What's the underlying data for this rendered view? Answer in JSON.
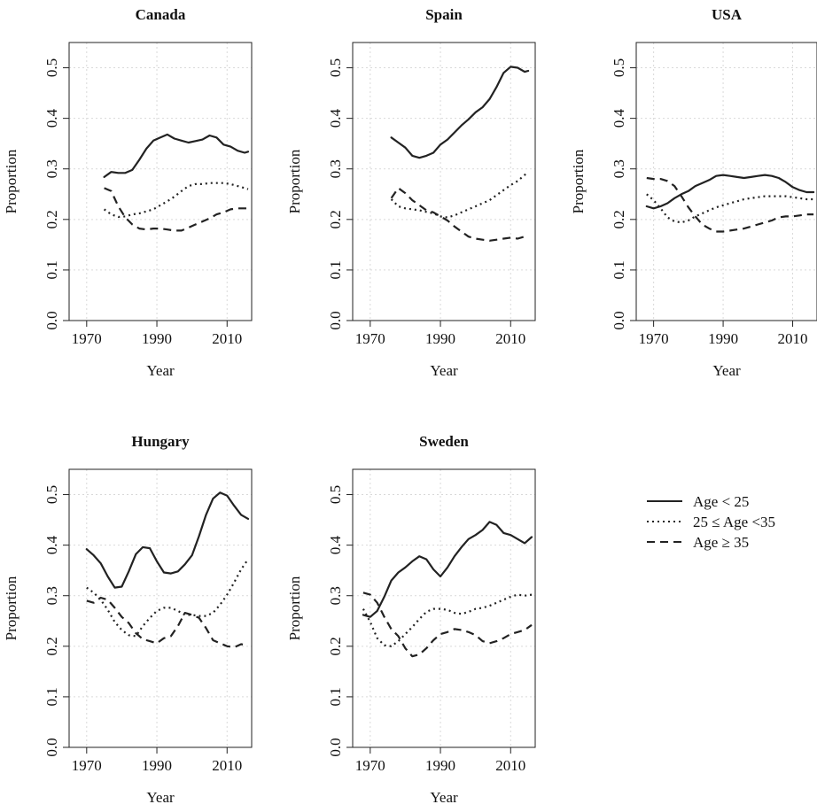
{
  "legend": {
    "entries": [
      {
        "label": "Age < 25",
        "dash": "solid"
      },
      {
        "label": "25 ≤ Age <35",
        "dash": "dotted"
      },
      {
        "label": "Age ≥ 35",
        "dash": "dashed"
      }
    ],
    "placement": "right of Sweden panel"
  },
  "chart_data": [
    {
      "type": "line",
      "title": "Canada",
      "xlabel": "Year",
      "ylabel": "Proportion",
      "xlim": [
        1965,
        2017
      ],
      "ylim": [
        0,
        0.55
      ],
      "xticks": [
        1970,
        1990,
        2010
      ],
      "yticks": [
        0.0,
        0.1,
        0.2,
        0.3,
        0.4,
        0.5
      ],
      "ytick_labels": [
        "0.0",
        "0.1",
        "0.2",
        "0.3",
        "0.4",
        "0.5"
      ],
      "grid": true,
      "series": [
        {
          "name": "Age < 25",
          "dash": "solid",
          "x": [
            1975,
            1977,
            1979,
            1981,
            1983,
            1985,
            1987,
            1989,
            1991,
            1993,
            1995,
            1997,
            1999,
            2001,
            2003,
            2005,
            2007,
            2009,
            2011,
            2013,
            2015,
            2016
          ],
          "y": [
            0.284,
            0.294,
            0.292,
            0.292,
            0.298,
            0.318,
            0.34,
            0.356,
            0.362,
            0.368,
            0.36,
            0.356,
            0.352,
            0.355,
            0.358,
            0.366,
            0.362,
            0.348,
            0.344,
            0.336,
            0.332,
            0.334
          ]
        },
        {
          "name": "25 ≤ Age <35",
          "dash": "dotted",
          "x": [
            1975,
            1977,
            1979,
            1981,
            1983,
            1985,
            1987,
            1989,
            1991,
            1993,
            1995,
            1997,
            1999,
            2001,
            2003,
            2005,
            2007,
            2009,
            2011,
            2013,
            2015,
            2016
          ],
          "y": [
            0.22,
            0.21,
            0.205,
            0.206,
            0.21,
            0.212,
            0.216,
            0.22,
            0.228,
            0.236,
            0.245,
            0.256,
            0.266,
            0.27,
            0.27,
            0.272,
            0.272,
            0.272,
            0.27,
            0.266,
            0.262,
            0.26
          ]
        },
        {
          "name": "Age ≥ 35",
          "dash": "dashed",
          "x": [
            1975,
            1977,
            1979,
            1981,
            1983,
            1985,
            1987,
            1989,
            1991,
            1993,
            1995,
            1997,
            1999,
            2001,
            2003,
            2005,
            2007,
            2009,
            2011,
            2013,
            2015,
            2016
          ],
          "y": [
            0.262,
            0.256,
            0.226,
            0.204,
            0.19,
            0.182,
            0.18,
            0.182,
            0.182,
            0.18,
            0.178,
            0.178,
            0.184,
            0.19,
            0.196,
            0.202,
            0.21,
            0.214,
            0.22,
            0.222,
            0.222,
            0.222
          ]
        }
      ]
    },
    {
      "type": "line",
      "title": "Spain",
      "xlabel": "Year",
      "ylabel": "Proportion",
      "xlim": [
        1965,
        2017
      ],
      "ylim": [
        0,
        0.55
      ],
      "xticks": [
        1970,
        1990,
        2010
      ],
      "yticks": [
        0.0,
        0.1,
        0.2,
        0.3,
        0.4,
        0.5
      ],
      "ytick_labels": [
        "0.0",
        "0.1",
        "0.2",
        "0.3",
        "0.4",
        "0.5"
      ],
      "grid": true,
      "series": [
        {
          "name": "Age < 25",
          "dash": "solid",
          "x": [
            1976,
            1978,
            1980,
            1982,
            1984,
            1986,
            1988,
            1990,
            1992,
            1994,
            1996,
            1998,
            2000,
            2002,
            2004,
            2006,
            2008,
            2010,
            2012,
            2014,
            2015
          ],
          "y": [
            0.362,
            0.352,
            0.342,
            0.326,
            0.322,
            0.326,
            0.332,
            0.348,
            0.358,
            0.372,
            0.386,
            0.398,
            0.412,
            0.422,
            0.438,
            0.462,
            0.49,
            0.502,
            0.5,
            0.492,
            0.494
          ]
        },
        {
          "name": "25 ≤ Age <35",
          "dash": "dotted",
          "x": [
            1976,
            1978,
            1980,
            1982,
            1984,
            1986,
            1988,
            1990,
            1992,
            1994,
            1996,
            1998,
            2000,
            2002,
            2004,
            2006,
            2008,
            2010,
            2012,
            2014,
            2015
          ],
          "y": [
            0.24,
            0.226,
            0.222,
            0.22,
            0.218,
            0.215,
            0.212,
            0.206,
            0.204,
            0.208,
            0.214,
            0.22,
            0.226,
            0.232,
            0.238,
            0.248,
            0.258,
            0.268,
            0.276,
            0.288,
            0.294
          ]
        },
        {
          "name": "Age ≥ 35",
          "dash": "dashed",
          "x": [
            1976,
            1978,
            1980,
            1982,
            1984,
            1986,
            1988,
            1990,
            1992,
            1994,
            1996,
            1998,
            2000,
            2002,
            2004,
            2006,
            2008,
            2010,
            2012,
            2014,
            2015
          ],
          "y": [
            0.242,
            0.262,
            0.252,
            0.238,
            0.228,
            0.218,
            0.214,
            0.206,
            0.198,
            0.186,
            0.176,
            0.166,
            0.162,
            0.16,
            0.158,
            0.16,
            0.162,
            0.164,
            0.162,
            0.166,
            0.168
          ]
        }
      ]
    },
    {
      "type": "line",
      "title": "USA",
      "xlabel": "Year",
      "ylabel": "Proportion",
      "xlim": [
        1965,
        2017
      ],
      "ylim": [
        0,
        0.55
      ],
      "xticks": [
        1970,
        1990,
        2010
      ],
      "yticks": [
        0.0,
        0.1,
        0.2,
        0.3,
        0.4,
        0.5
      ],
      "ytick_labels": [
        "0.0",
        "0.1",
        "0.2",
        "0.3",
        "0.4",
        "0.5"
      ],
      "grid": true,
      "series": [
        {
          "name": "Age < 25",
          "dash": "solid",
          "x": [
            1968,
            1970,
            1972,
            1974,
            1976,
            1978,
            1980,
            1982,
            1984,
            1986,
            1988,
            1990,
            1992,
            1994,
            1996,
            1998,
            2000,
            2002,
            2004,
            2006,
            2008,
            2010,
            2012,
            2014,
            2016
          ],
          "y": [
            0.226,
            0.222,
            0.226,
            0.232,
            0.242,
            0.25,
            0.256,
            0.266,
            0.272,
            0.278,
            0.286,
            0.288,
            0.286,
            0.284,
            0.282,
            0.284,
            0.286,
            0.288,
            0.286,
            0.282,
            0.274,
            0.264,
            0.258,
            0.254,
            0.254
          ]
        },
        {
          "name": "25 ≤ Age <35",
          "dash": "dotted",
          "x": [
            1968,
            1970,
            1972,
            1974,
            1976,
            1978,
            1980,
            1982,
            1984,
            1986,
            1988,
            1990,
            1992,
            1994,
            1996,
            1998,
            2000,
            2002,
            2004,
            2006,
            2008,
            2010,
            2012,
            2014,
            2016
          ],
          "y": [
            0.25,
            0.238,
            0.222,
            0.204,
            0.196,
            0.194,
            0.198,
            0.206,
            0.212,
            0.218,
            0.224,
            0.228,
            0.232,
            0.236,
            0.24,
            0.242,
            0.244,
            0.246,
            0.246,
            0.246,
            0.246,
            0.244,
            0.242,
            0.24,
            0.24
          ]
        },
        {
          "name": "Age ≥ 35",
          "dash": "dashed",
          "x": [
            1968,
            1970,
            1972,
            1974,
            1976,
            1978,
            1980,
            1982,
            1984,
            1986,
            1988,
            1990,
            1992,
            1994,
            1996,
            1998,
            2000,
            2002,
            2004,
            2006,
            2008,
            2010,
            2012,
            2014,
            2016
          ],
          "y": [
            0.282,
            0.28,
            0.28,
            0.276,
            0.266,
            0.246,
            0.224,
            0.206,
            0.19,
            0.182,
            0.176,
            0.176,
            0.178,
            0.18,
            0.182,
            0.186,
            0.19,
            0.194,
            0.198,
            0.204,
            0.206,
            0.206,
            0.208,
            0.21,
            0.21
          ]
        }
      ]
    },
    {
      "type": "line",
      "title": "Hungary",
      "xlabel": "Year",
      "ylabel": "Proportion",
      "xlim": [
        1965,
        2017
      ],
      "ylim": [
        0,
        0.55
      ],
      "xticks": [
        1970,
        1990,
        2010
      ],
      "yticks": [
        0.0,
        0.1,
        0.2,
        0.3,
        0.4,
        0.5
      ],
      "ytick_labels": [
        "0.0",
        "0.1",
        "0.2",
        "0.3",
        "0.4",
        "0.5"
      ],
      "grid": true,
      "series": [
        {
          "name": "Age < 25",
          "dash": "solid",
          "x": [
            1970,
            1972,
            1974,
            1976,
            1978,
            1980,
            1982,
            1984,
            1986,
            1988,
            1990,
            1992,
            1994,
            1996,
            1998,
            2000,
            2002,
            2004,
            2006,
            2008,
            2010,
            2012,
            2014,
            2016
          ],
          "y": [
            0.392,
            0.38,
            0.364,
            0.338,
            0.316,
            0.318,
            0.348,
            0.382,
            0.396,
            0.394,
            0.368,
            0.346,
            0.344,
            0.348,
            0.362,
            0.38,
            0.418,
            0.46,
            0.492,
            0.504,
            0.498,
            0.478,
            0.46,
            0.452
          ]
        },
        {
          "name": "25 ≤ Age <35",
          "dash": "dotted",
          "x": [
            1970,
            1972,
            1974,
            1976,
            1978,
            1980,
            1982,
            1984,
            1986,
            1988,
            1990,
            1992,
            1994,
            1996,
            1998,
            2000,
            2002,
            2004,
            2006,
            2008,
            2010,
            2012,
            2014,
            2016
          ],
          "y": [
            0.316,
            0.306,
            0.292,
            0.272,
            0.248,
            0.232,
            0.222,
            0.22,
            0.24,
            0.256,
            0.27,
            0.276,
            0.276,
            0.27,
            0.262,
            0.262,
            0.26,
            0.26,
            0.266,
            0.282,
            0.302,
            0.326,
            0.352,
            0.372
          ]
        },
        {
          "name": "Age ≥ 35",
          "dash": "dashed",
          "x": [
            1970,
            1972,
            1974,
            1976,
            1978,
            1980,
            1982,
            1984,
            1986,
            1988,
            1990,
            1992,
            1994,
            1996,
            1998,
            2000,
            2002,
            2004,
            2006,
            2008,
            2010,
            2012,
            2014,
            2016
          ],
          "y": [
            0.29,
            0.286,
            0.296,
            0.292,
            0.276,
            0.258,
            0.246,
            0.226,
            0.214,
            0.21,
            0.206,
            0.216,
            0.22,
            0.24,
            0.266,
            0.262,
            0.256,
            0.236,
            0.212,
            0.206,
            0.2,
            0.198,
            0.204,
            0.202
          ]
        }
      ]
    },
    {
      "type": "line",
      "title": "Sweden",
      "xlabel": "Year",
      "ylabel": "Proportion",
      "xlim": [
        1965,
        2017
      ],
      "ylim": [
        0,
        0.55
      ],
      "xticks": [
        1970,
        1990,
        2010
      ],
      "yticks": [
        0.0,
        0.1,
        0.2,
        0.3,
        0.4,
        0.5
      ],
      "ytick_labels": [
        "0.0",
        "0.1",
        "0.2",
        "0.3",
        "0.4",
        "0.5"
      ],
      "grid": true,
      "series": [
        {
          "name": "Age < 25",
          "dash": "solid",
          "x": [
            1968,
            1970,
            1972,
            1974,
            1976,
            1978,
            1980,
            1982,
            1984,
            1986,
            1988,
            1990,
            1992,
            1994,
            1996,
            1998,
            2000,
            2002,
            2004,
            2006,
            2008,
            2010,
            2012,
            2014,
            2016
          ],
          "y": [
            0.262,
            0.258,
            0.27,
            0.298,
            0.33,
            0.346,
            0.356,
            0.368,
            0.378,
            0.372,
            0.352,
            0.338,
            0.356,
            0.378,
            0.396,
            0.412,
            0.42,
            0.43,
            0.446,
            0.44,
            0.424,
            0.42,
            0.412,
            0.404,
            0.416
          ]
        },
        {
          "name": "25 ≤ Age <35",
          "dash": "dotted",
          "x": [
            1968,
            1970,
            1972,
            1974,
            1976,
            1978,
            1980,
            1982,
            1984,
            1986,
            1988,
            1990,
            1992,
            1994,
            1996,
            1998,
            2000,
            2002,
            2004,
            2006,
            2008,
            2010,
            2012,
            2014,
            2016
          ],
          "y": [
            0.274,
            0.248,
            0.216,
            0.202,
            0.2,
            0.21,
            0.224,
            0.238,
            0.254,
            0.268,
            0.274,
            0.274,
            0.272,
            0.266,
            0.264,
            0.268,
            0.274,
            0.276,
            0.28,
            0.286,
            0.292,
            0.298,
            0.302,
            0.3,
            0.302
          ]
        },
        {
          "name": "Age ≥ 35",
          "dash": "dashed",
          "x": [
            1968,
            1970,
            1972,
            1974,
            1976,
            1978,
            1980,
            1982,
            1984,
            1986,
            1988,
            1990,
            1992,
            1994,
            1996,
            1998,
            2000,
            2002,
            2004,
            2006,
            2008,
            2010,
            2012,
            2014,
            2016
          ],
          "y": [
            0.306,
            0.302,
            0.286,
            0.258,
            0.234,
            0.22,
            0.196,
            0.18,
            0.184,
            0.196,
            0.212,
            0.224,
            0.228,
            0.234,
            0.232,
            0.228,
            0.222,
            0.21,
            0.206,
            0.21,
            0.216,
            0.224,
            0.228,
            0.232,
            0.242
          ]
        }
      ]
    }
  ]
}
